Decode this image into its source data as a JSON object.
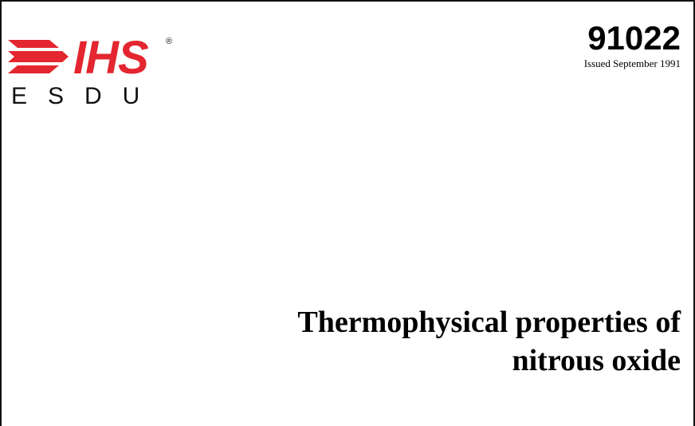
{
  "header": {
    "logo": {
      "brand": "IHS",
      "registered": "®",
      "sub_brand": "ESDU",
      "brand_color": "#e3262f"
    },
    "doc_number": "91022",
    "issued": "Issued September 1991"
  },
  "title": {
    "line1": "Thermophysical properties of",
    "line2": "nitrous oxide"
  }
}
